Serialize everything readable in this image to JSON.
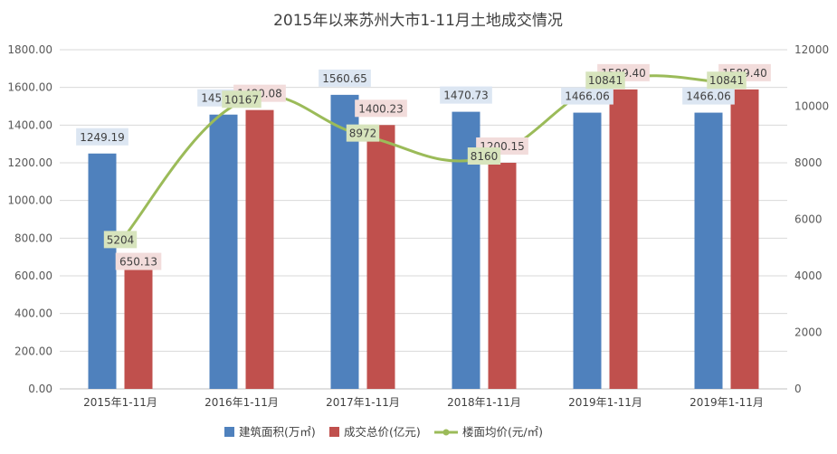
{
  "chart_data": {
    "type": "bar",
    "title": "2015年以来苏州大市1-11月土地成交情况",
    "categories": [
      "2015年1-11月",
      "2016年1-11月",
      "2017年1-11月",
      "2018年1-11月",
      "2019年1-11月",
      "2019年1-11月"
    ],
    "series": [
      {
        "name": "建筑面积(万㎡)",
        "type": "bar",
        "axis": "left",
        "color": "#4F81BD",
        "label_bg": "#DCE6F2",
        "values": [
          1249.19,
          1455.72,
          1560.65,
          1470.73,
          1466.06,
          1466.06
        ],
        "labels": [
          "1249.19",
          "1455.72",
          "1560.65",
          "1470.73",
          "1466.06",
          "1466.06"
        ]
      },
      {
        "name": "成交总价(亿元)",
        "type": "bar",
        "axis": "left",
        "color": "#C0504D",
        "label_bg": "#F2DCDB",
        "values": [
          650.13,
          1480.08,
          1400.23,
          1200.15,
          1589.4,
          1589.4
        ],
        "labels": [
          "650.13",
          "1480.08",
          "1400.23",
          "1200.15",
          "1589.40",
          "1589.40"
        ]
      },
      {
        "name": "楼面均价(元/㎡)",
        "type": "line",
        "axis": "right",
        "color": "#9BBB59",
        "label_bg": "#D7E4BD",
        "values": [
          5204,
          10167,
          8972,
          8160,
          10841,
          10841
        ],
        "labels": [
          "5204",
          "10167",
          "8972",
          "8160",
          "10841",
          "10841"
        ]
      }
    ],
    "y_left": {
      "min": 0,
      "max": 1800,
      "ticks": [
        "0.00",
        "200.00",
        "400.00",
        "600.00",
        "800.00",
        "1000.00",
        "1200.00",
        "1400.00",
        "1600.00",
        "1800.00"
      ]
    },
    "y_right": {
      "min": 0,
      "max": 12000,
      "ticks": [
        "0",
        "2000",
        "4000",
        "6000",
        "8000",
        "10000",
        "12000"
      ]
    },
    "grid": true,
    "legend_position": "bottom"
  }
}
